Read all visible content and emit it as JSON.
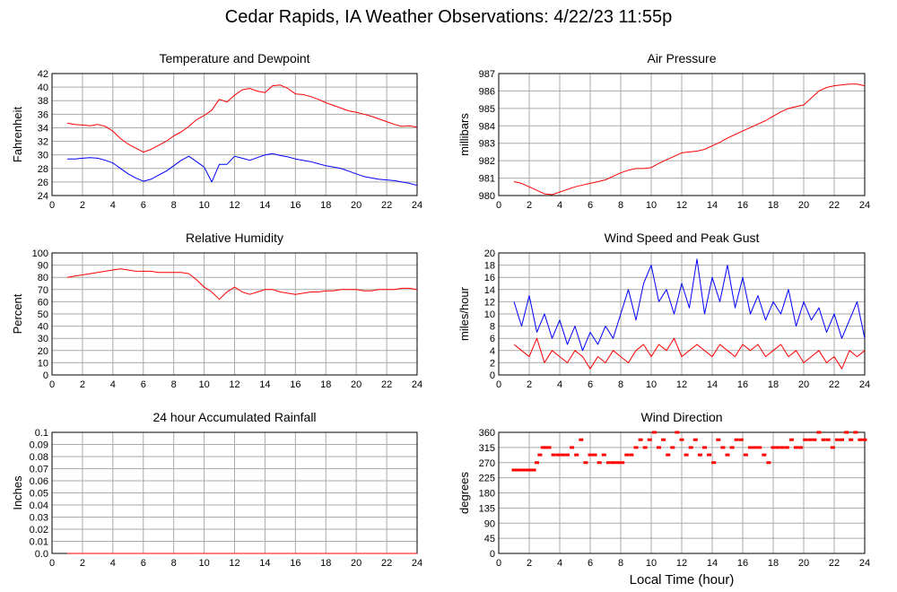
{
  "title": "Cedar Rapids, IA Weather Observations: 4/22/23 11:55p",
  "x_axis_label": "Local Time (hour)",
  "colors": {
    "red": "#ff0000",
    "blue": "#0000ff",
    "grid": "#aaaaaa"
  },
  "chart_data": [
    {
      "type": "line",
      "title": "Temperature and Dewpoint",
      "ylabel": "Fahrenheit",
      "xlim": [
        0,
        24
      ],
      "ylim": [
        24,
        42
      ],
      "x_ticks": [
        2,
        4,
        6,
        8,
        10,
        12,
        14,
        16,
        18,
        20,
        22,
        24
      ],
      "y_ticks": [
        24,
        26,
        28,
        30,
        32,
        34,
        36,
        38,
        40,
        42
      ],
      "series": [
        {
          "color": "red",
          "x": [
            1,
            1.5,
            2,
            2.5,
            3,
            3.5,
            4,
            4.5,
            5,
            5.5,
            6,
            6.5,
            7,
            7.5,
            8,
            8.5,
            9,
            9.5,
            10,
            10.5,
            11,
            11.5,
            12,
            12.5,
            13,
            13.5,
            14,
            14.5,
            15,
            15.5,
            16,
            16.5,
            17,
            17.5,
            18,
            18.5,
            19,
            19.5,
            20,
            20.5,
            21,
            21.5,
            22,
            22.5,
            23,
            23.5,
            24
          ],
          "y": [
            34.7,
            34.5,
            34.4,
            34.3,
            34.5,
            34.2,
            33.5,
            32.4,
            31.6,
            31.0,
            30.4,
            30.8,
            31.4,
            32.0,
            32.8,
            33.4,
            34.2,
            35.2,
            35.8,
            36.6,
            38.2,
            37.8,
            38.8,
            39.6,
            39.8,
            39.4,
            39.2,
            40.2,
            40.3,
            39.8,
            39.0,
            38.9,
            38.6,
            38.2,
            37.7,
            37.3,
            36.9,
            36.5,
            36.3,
            36.0,
            35.7,
            35.3,
            34.9,
            34.5,
            34.2,
            34.3,
            34.1
          ]
        },
        {
          "color": "blue",
          "x": [
            1,
            1.5,
            2,
            2.5,
            3,
            3.5,
            4,
            4.5,
            5,
            5.5,
            6,
            6.5,
            7,
            7.5,
            8,
            8.5,
            9,
            9.5,
            10,
            10.5,
            11,
            11.5,
            12,
            12.5,
            13,
            13.5,
            14,
            14.5,
            15,
            15.5,
            16,
            16.5,
            17,
            17.5,
            18,
            18.5,
            19,
            19.5,
            20,
            20.5,
            21,
            21.5,
            22,
            22.5,
            23,
            23.5,
            24
          ],
          "y": [
            29.4,
            29.4,
            29.5,
            29.6,
            29.5,
            29.2,
            28.8,
            28.0,
            27.2,
            26.6,
            26.1,
            26.4,
            27.0,
            27.6,
            28.4,
            29.2,
            29.8,
            29.0,
            28.2,
            26.0,
            28.6,
            28.6,
            29.8,
            29.5,
            29.2,
            29.6,
            30.0,
            30.2,
            29.9,
            29.7,
            29.4,
            29.2,
            29.0,
            28.7,
            28.4,
            28.2,
            28.0,
            27.6,
            27.2,
            26.8,
            26.6,
            26.4,
            26.3,
            26.2,
            26.0,
            25.8,
            25.5
          ]
        }
      ]
    },
    {
      "type": "line",
      "title": "Air Pressure",
      "ylabel": "millibars",
      "xlim": [
        0,
        24
      ],
      "ylim": [
        980,
        987
      ],
      "x_ticks": [
        2,
        4,
        6,
        8,
        10,
        12,
        14,
        16,
        18,
        20,
        22,
        24
      ],
      "y_ticks": [
        980,
        981,
        982,
        983,
        984,
        985,
        986,
        987
      ],
      "series": [
        {
          "color": "red",
          "x": [
            1,
            1.5,
            2,
            2.5,
            3,
            3.5,
            4,
            4.5,
            5,
            5.5,
            6,
            6.5,
            7,
            7.5,
            8,
            8.5,
            9,
            9.5,
            10,
            10.5,
            11,
            11.5,
            12,
            12.5,
            13,
            13.5,
            14,
            14.5,
            15,
            15.5,
            16,
            16.5,
            17,
            17.5,
            18,
            18.5,
            19,
            19.5,
            20,
            20.5,
            21,
            21.5,
            22,
            22.5,
            23,
            23.5,
            24
          ],
          "y": [
            980.8,
            980.7,
            980.5,
            980.3,
            980.1,
            980.05,
            980.2,
            980.35,
            980.5,
            980.6,
            980.7,
            980.8,
            980.9,
            981.1,
            981.3,
            981.45,
            981.55,
            981.55,
            981.6,
            981.85,
            982.05,
            982.25,
            982.45,
            982.5,
            982.55,
            982.65,
            982.85,
            983.05,
            983.3,
            983.5,
            983.7,
            983.9,
            984.1,
            984.3,
            984.55,
            984.8,
            985.0,
            985.1,
            985.2,
            985.6,
            986.0,
            986.2,
            986.3,
            986.35,
            986.4,
            986.4,
            986.3
          ]
        }
      ]
    },
    {
      "type": "line",
      "title": "Relative Humidity",
      "ylabel": "Percent",
      "xlim": [
        0,
        24
      ],
      "ylim": [
        0,
        100
      ],
      "x_ticks": [
        2,
        4,
        6,
        8,
        10,
        12,
        14,
        16,
        18,
        20,
        22,
        24
      ],
      "y_ticks": [
        0,
        10,
        20,
        30,
        40,
        50,
        60,
        70,
        80,
        90,
        100
      ],
      "series": [
        {
          "color": "red",
          "x": [
            1,
            1.5,
            2,
            2.5,
            3,
            3.5,
            4,
            4.5,
            5,
            5.5,
            6,
            6.5,
            7,
            7.5,
            8,
            8.5,
            9,
            9.5,
            10,
            10.5,
            11,
            11.5,
            12,
            12.5,
            13,
            13.5,
            14,
            14.5,
            15,
            15.5,
            16,
            16.5,
            17,
            17.5,
            18,
            18.5,
            19,
            19.5,
            20,
            20.5,
            21,
            21.5,
            22,
            22.5,
            23,
            23.5,
            24
          ],
          "y": [
            80,
            81,
            82,
            83,
            84,
            85,
            86,
            87,
            86,
            85,
            85,
            85,
            84,
            84,
            84,
            84,
            83,
            78,
            72,
            68,
            62,
            68,
            72,
            68,
            66,
            68,
            70,
            70,
            68,
            67,
            66,
            67,
            68,
            68,
            69,
            69,
            70,
            70,
            70,
            69,
            69,
            70,
            70,
            70,
            71,
            71,
            70
          ]
        }
      ]
    },
    {
      "type": "line",
      "title": "Wind Speed and Peak Gust",
      "ylabel": "miles/hour",
      "xlim": [
        0,
        24
      ],
      "ylim": [
        0,
        20
      ],
      "x_ticks": [
        2,
        4,
        6,
        8,
        10,
        12,
        14,
        16,
        18,
        20,
        22,
        24
      ],
      "y_ticks": [
        0,
        2,
        4,
        6,
        8,
        10,
        12,
        14,
        16,
        18,
        20
      ],
      "series": [
        {
          "color": "red",
          "x": [
            1,
            1.5,
            2,
            2.5,
            3,
            3.5,
            4,
            4.5,
            5,
            5.5,
            6,
            6.5,
            7,
            7.5,
            8,
            8.5,
            9,
            9.5,
            10,
            10.5,
            11,
            11.5,
            12,
            12.5,
            13,
            13.5,
            14,
            14.5,
            15,
            15.5,
            16,
            16.5,
            17,
            17.5,
            18,
            18.5,
            19,
            19.5,
            20,
            20.5,
            21,
            21.5,
            22,
            22.5,
            23,
            23.5,
            24
          ],
          "y": [
            5,
            4,
            3,
            6,
            2,
            4,
            3,
            2,
            4,
            3,
            1,
            3,
            2,
            4,
            3,
            2,
            4,
            5,
            3,
            5,
            4,
            6,
            3,
            4,
            5,
            4,
            3,
            5,
            4,
            3,
            5,
            4,
            5,
            3,
            4,
            5,
            3,
            4,
            2,
            3,
            4,
            2,
            3,
            1,
            4,
            3,
            4
          ]
        },
        {
          "color": "blue",
          "x": [
            1,
            1.5,
            2,
            2.5,
            3,
            3.5,
            4,
            4.5,
            5,
            5.5,
            6,
            6.5,
            7,
            7.5,
            8,
            8.5,
            9,
            9.5,
            10,
            10.5,
            11,
            11.5,
            12,
            12.5,
            13,
            13.5,
            14,
            14.5,
            15,
            15.5,
            16,
            16.5,
            17,
            17.5,
            18,
            18.5,
            19,
            19.5,
            20,
            20.5,
            21,
            21.5,
            22,
            22.5,
            23,
            23.5,
            24
          ],
          "y": [
            12,
            8,
            13,
            7,
            10,
            6,
            9,
            5,
            8,
            4,
            7,
            5,
            8,
            6,
            10,
            14,
            9,
            15,
            18,
            12,
            14,
            10,
            15,
            11,
            19,
            10,
            16,
            12,
            18,
            11,
            16,
            10,
            13,
            9,
            12,
            10,
            14,
            8,
            12,
            9,
            11,
            7,
            10,
            6,
            9,
            12,
            6
          ]
        }
      ]
    },
    {
      "type": "line",
      "title": "24 hour Accumulated Rainfall",
      "ylabel": "Inches",
      "xlim": [
        0,
        24
      ],
      "ylim": [
        0,
        0.1
      ],
      "x_ticks": [
        2,
        4,
        6,
        8,
        10,
        12,
        14,
        16,
        18,
        20,
        22,
        24
      ],
      "y_ticks": [
        0.0,
        0.01,
        0.02,
        0.03,
        0.04,
        0.05,
        0.06,
        0.07,
        0.08,
        0.09,
        0.1
      ],
      "y_tick_labels": [
        "0.0",
        "0.01",
        "0.02",
        "0.03",
        "0.04",
        "0.05",
        "0.06",
        "0.07",
        "0.08",
        "0.09",
        "0.1"
      ],
      "series": [
        {
          "color": "red",
          "x": [
            1,
            24
          ],
          "y": [
            0,
            0
          ]
        }
      ]
    },
    {
      "type": "scatter",
      "title": "Wind Direction",
      "ylabel": "degrees",
      "xlim": [
        0,
        24
      ],
      "ylim": [
        0,
        360
      ],
      "x_ticks": [
        2,
        4,
        6,
        8,
        10,
        12,
        14,
        16,
        18,
        20,
        22,
        24
      ],
      "y_ticks": [
        0,
        45,
        90,
        135,
        180,
        225,
        270,
        315,
        360
      ],
      "series": [
        {
          "color": "red",
          "x": [
            1.0,
            1.1,
            1.2,
            1.3,
            1.4,
            1.5,
            1.6,
            1.7,
            1.8,
            1.9,
            2.0,
            2.1,
            2.2,
            2.3,
            2.5,
            2.7,
            2.9,
            3.1,
            3.3,
            3.6,
            3.9,
            4.2,
            4.5,
            4.8,
            5.1,
            5.4,
            5.7,
            6.0,
            6.3,
            6.6,
            6.9,
            7.2,
            7.5,
            7.8,
            8.1,
            8.4,
            8.7,
            9.0,
            9.3,
            9.6,
            9.9,
            10.2,
            10.5,
            10.8,
            11.1,
            11.4,
            11.7,
            12.0,
            12.3,
            12.6,
            12.9,
            13.2,
            13.5,
            13.8,
            14.1,
            14.4,
            14.7,
            15.0,
            15.3,
            15.6,
            15.9,
            16.2,
            16.5,
            16.8,
            17.1,
            17.4,
            17.7,
            18.0,
            18.3,
            18.6,
            18.9,
            19.2,
            19.5,
            19.8,
            20.1,
            20.4,
            20.7,
            21.0,
            21.3,
            21.6,
            21.9,
            22.2,
            22.5,
            22.8,
            23.1,
            23.4,
            23.7,
            24.0
          ],
          "y": [
            248,
            248,
            248,
            248,
            248,
            248,
            248,
            248,
            248,
            248,
            248,
            248,
            248,
            248,
            270,
            293,
            315,
            315,
            315,
            293,
            293,
            293,
            293,
            315,
            293,
            338,
            270,
            293,
            293,
            270,
            293,
            270,
            270,
            270,
            270,
            293,
            293,
            315,
            338,
            315,
            338,
            360,
            315,
            338,
            293,
            315,
            360,
            338,
            293,
            315,
            338,
            293,
            315,
            293,
            270,
            338,
            315,
            293,
            315,
            338,
            338,
            293,
            315,
            315,
            315,
            293,
            270,
            315,
            315,
            315,
            315,
            338,
            315,
            315,
            338,
            338,
            338,
            360,
            338,
            338,
            315,
            338,
            338,
            360,
            338,
            360,
            338,
            338
          ]
        }
      ]
    }
  ]
}
